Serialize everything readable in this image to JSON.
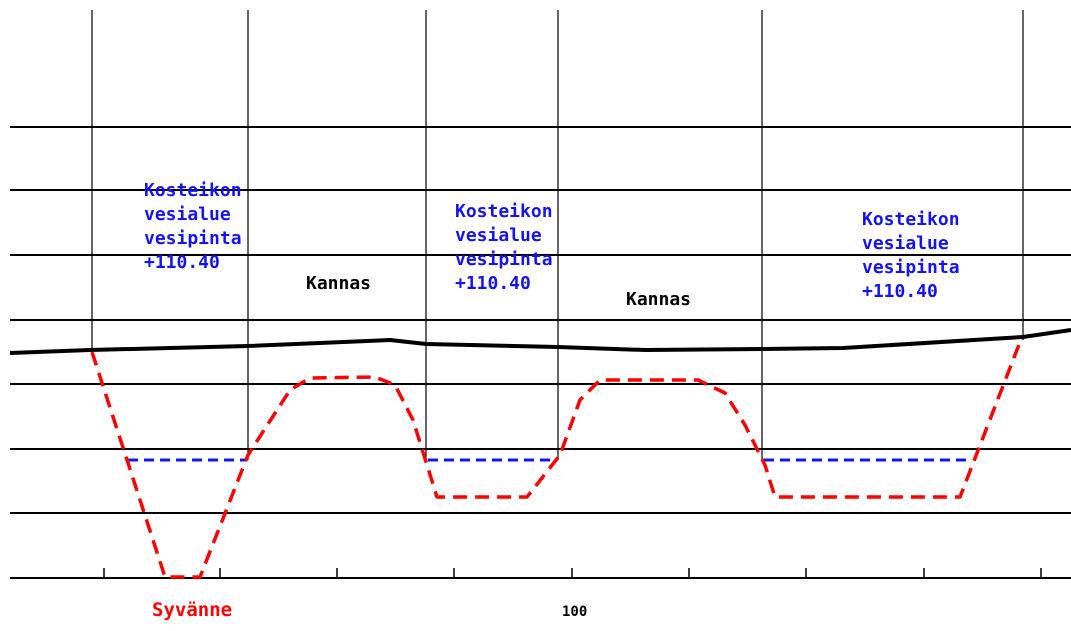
{
  "pond_labels": [
    [
      "Kosteikon",
      "vesialue",
      "vesipinta",
      "+110.40"
    ],
    [
      "Kosteikon",
      "vesialue",
      "vesipinta",
      "+110.40"
    ],
    [
      "Kosteikon",
      "vesialue",
      "vesipinta",
      "+110.40"
    ]
  ],
  "isthmus_labels": [
    "Kannas",
    "Kannas"
  ],
  "deep_label": "Syvänne",
  "station_label": "100",
  "colors": {
    "grid": "#000000",
    "ground": "#000000",
    "excavation": "#ff0000",
    "water_level": "#1414f0",
    "pond_text": "#1414f0",
    "deep_text": "#ff0000"
  }
}
